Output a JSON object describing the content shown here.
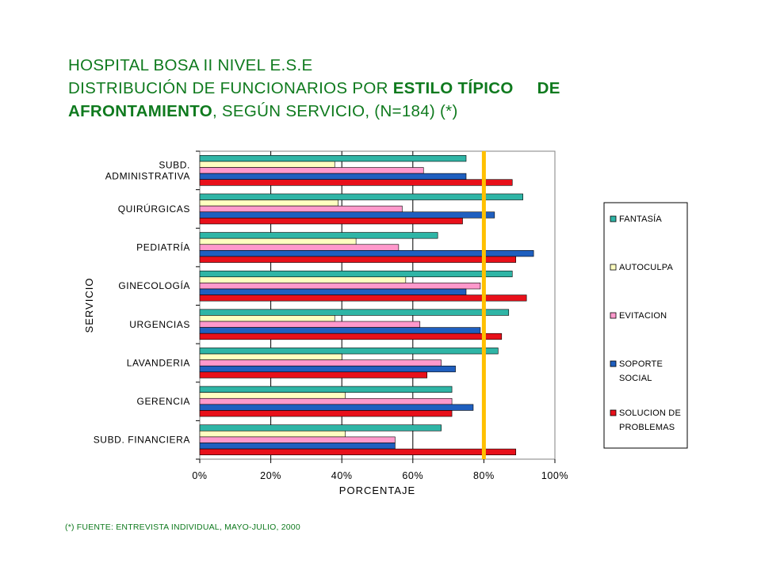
{
  "title": {
    "line1": "HOSPITAL BOSA II NIVEL E.S.E",
    "line2_prefix": "DISTRIBUCIÓN DE FUNCIONARIOS POR ",
    "line2_bold": "ESTILO TÍPICO     DE",
    "line3_bold": "AFRONTAMIENTO",
    "line3_suffix": ", SEGÚN SERVICIO, (N=184) (*)"
  },
  "footnote": "(*) FUENTE: ENTREVISTA  INDIVIDUAL,  MAYO-JULIO, 2000",
  "colors": {
    "fantasia": "#2fb5a6",
    "autoculpa": "#ffffc0",
    "evitacion": "#ff99cc",
    "soporte": "#1f5fbf",
    "solucion": "#e8101a",
    "reference_line": "#ffc000"
  },
  "chart_data": {
    "type": "bar",
    "orientation": "horizontal",
    "categories": [
      "SUBD.\nADMINISTRATIVA",
      "QUIRÚRGICAS",
      "PEDIATRÍA",
      "GINECOLOGÍA",
      "URGENCIAS",
      "LAVANDERIA",
      "GERENCIA",
      "SUBD. FINANCIERA"
    ],
    "series": [
      {
        "name": "FANTASÍA",
        "values": [
          75,
          91,
          67,
          88,
          87,
          84,
          71,
          68
        ]
      },
      {
        "name": "AUTOCULPA",
        "values": [
          38,
          39,
          44,
          58,
          38,
          40,
          41,
          41
        ]
      },
      {
        "name": "EVITACION",
        "values": [
          63,
          57,
          56,
          79,
          62,
          68,
          71,
          55
        ]
      },
      {
        "name": "SOPORTE\nSOCIAL",
        "values": [
          75,
          83,
          94,
          75,
          79,
          72,
          77,
          55
        ]
      },
      {
        "name": "SOLUCION DE\nPROBLEMAS",
        "values": [
          88,
          74,
          89,
          92,
          85,
          64,
          71,
          89
        ]
      }
    ],
    "xlim": [
      0,
      100
    ],
    "x_ticks": [
      "0%",
      "20%",
      "40%",
      "60%",
      "80%",
      "100%"
    ],
    "xlabel": "PORCENTAJE",
    "ylabel": "SERVICIO",
    "reference_line": 80,
    "grid": true,
    "legend": "right"
  }
}
